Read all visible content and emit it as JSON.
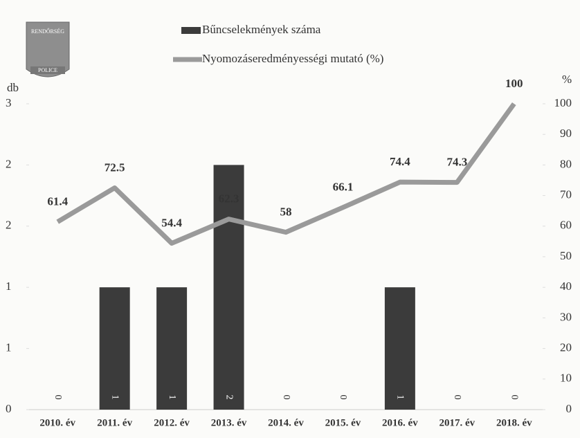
{
  "logo": {
    "top_text": "RENDŐRSÉG",
    "bottom_text": "POLICE"
  },
  "chart_data": {
    "type": "bar-line",
    "y_axis_label": "db",
    "y2_axis_label": "%",
    "categories": [
      "2010. év",
      "2011. év",
      "2012. év",
      "2013. év",
      "2014. év",
      "2015. év",
      "2016. év",
      "2017. év",
      "2018. év"
    ],
    "series": [
      {
        "name": "Bűncselekmények száma",
        "type": "bar",
        "color": "#3b3b3b",
        "values": [
          0,
          1,
          1,
          2,
          0,
          0,
          1,
          0,
          0
        ]
      },
      {
        "name": "Nyomozáseredményességi mutató (%)",
        "type": "line",
        "axis": "y2",
        "color": "#9a9a9a",
        "values": [
          61.4,
          72.5,
          54.4,
          62.3,
          58,
          66.1,
          74.4,
          74.3,
          100
        ]
      }
    ],
    "ylim": [
      0,
      2.5
    ],
    "yticks": [
      {
        "value": 0,
        "label": "0"
      },
      {
        "value": 0.5,
        "label": "1"
      },
      {
        "value": 1,
        "label": "1"
      },
      {
        "value": 1.5,
        "label": "2"
      },
      {
        "value": 2,
        "label": "2"
      },
      {
        "value": 2.5,
        "label": "3"
      }
    ],
    "y2lim": [
      0,
      100
    ],
    "y2ticks": [
      0,
      10,
      20,
      30,
      40,
      50,
      60,
      70,
      80,
      90,
      100
    ],
    "grid": false
  }
}
